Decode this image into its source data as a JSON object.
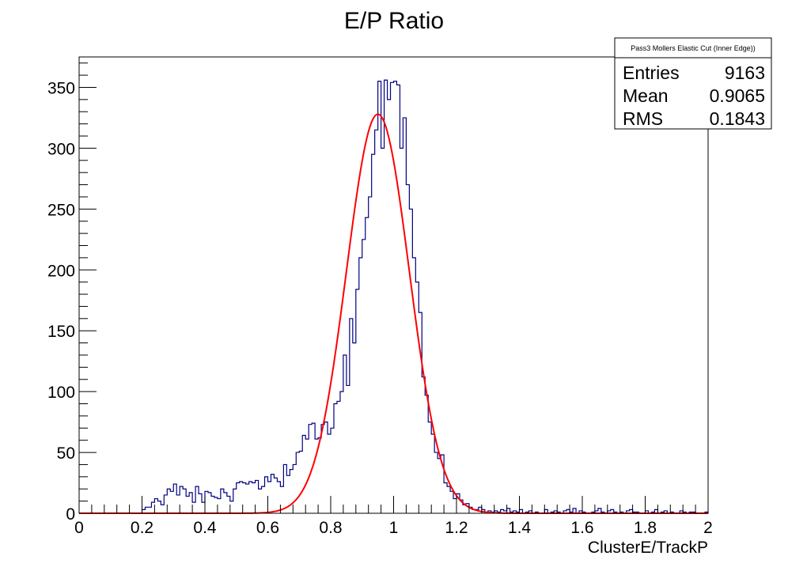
{
  "chart_data": {
    "type": "histogram",
    "title": "E/P Ratio",
    "xlabel": "ClusterE/TrackP",
    "ylabel": "",
    "xlim": [
      0,
      2
    ],
    "ylim": [
      0,
      375
    ],
    "x_ticks": [
      "0",
      "0.2",
      "0.4",
      "0.6",
      "0.8",
      "1",
      "1.2",
      "1.4",
      "1.6",
      "1.8",
      "2"
    ],
    "y_ticks": [
      "0",
      "50",
      "100",
      "150",
      "200",
      "250",
      "300",
      "350"
    ],
    "bin_width": 0.01,
    "histogram_color": "#000080",
    "fit_color": "#ff0000",
    "histogram_counts": [
      0,
      0,
      0,
      0,
      0,
      0,
      0,
      0,
      0,
      0,
      0,
      0,
      0,
      0,
      0,
      0,
      0,
      0,
      0,
      0,
      3,
      5,
      5,
      9,
      12,
      10,
      7,
      15,
      20,
      18,
      24,
      15,
      22,
      20,
      14,
      17,
      9,
      22,
      16,
      9,
      18,
      17,
      14,
      13,
      12,
      20,
      17,
      14,
      10,
      20,
      25,
      26,
      25,
      24,
      26,
      25,
      27,
      20,
      22,
      30,
      26,
      32,
      29,
      26,
      22,
      40,
      31,
      36,
      40,
      50,
      51,
      64,
      61,
      73,
      74,
      61,
      62,
      73,
      75,
      65,
      70,
      90,
      92,
      100,
      130,
      105,
      160,
      140,
      184,
      210,
      225,
      243,
      260,
      295,
      315,
      355,
      300,
      356,
      340,
      354,
      355,
      352,
      300,
      325,
      270,
      250,
      210,
      190,
      165,
      112,
      97,
      75,
      65,
      50,
      45,
      48,
      25,
      22,
      18,
      12,
      16,
      11,
      7,
      8,
      5,
      3,
      3,
      5,
      3,
      1,
      2,
      1,
      2,
      1,
      3,
      2,
      4,
      1,
      2,
      1,
      3,
      0,
      1,
      2,
      0,
      1,
      0,
      0,
      3,
      0,
      1,
      2,
      1,
      0,
      2,
      3,
      1,
      4,
      0,
      2,
      1,
      0,
      0,
      1,
      2,
      4,
      1,
      0,
      2,
      3,
      1,
      0,
      1,
      0,
      2,
      3,
      1,
      1,
      0,
      0,
      2,
      0,
      1,
      3,
      0,
      1,
      2,
      0,
      1,
      0,
      0,
      2,
      1,
      0,
      1,
      1,
      0,
      0,
      0,
      1
    ],
    "fit": {
      "type": "gaussian",
      "amplitude": 328,
      "mean": 0.95,
      "sigma": 0.1,
      "range": [
        0,
        2
      ]
    },
    "stats_box": {
      "header": "Pass3 Mollers Elastic Cut (Inner Edge))",
      "rows": [
        {
          "label": "Entries",
          "value": "9163"
        },
        {
          "label": "Mean",
          "value": "0.9065"
        },
        {
          "label": "RMS",
          "value": "0.1843"
        }
      ]
    },
    "grid": false,
    "legend": "none"
  }
}
